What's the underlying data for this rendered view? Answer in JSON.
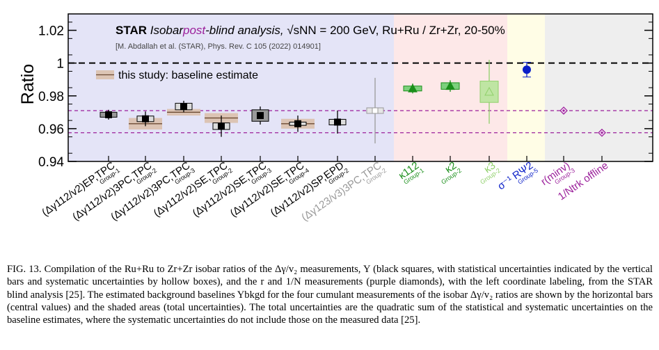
{
  "chart_data": {
    "type": "scatter",
    "ylabel": "Ratio",
    "ylim": [
      0.94,
      1.03
    ],
    "yticks": [
      "0.94",
      "0.96",
      "0.98",
      "1",
      "1.02"
    ],
    "title": {
      "experiment": "STAR",
      "text_a": "Isobar",
      "text_b": "post",
      "text_c": "-blind analysis,",
      "energy": "√sNN = 200 GeV,",
      "system": "Ru+Ru / Zr+Zr,",
      "centrality": "20-50%"
    },
    "reference": "[M. Abdallah et al. (STAR), Phys. Rev. C 105 (2022) 014901]",
    "legend": "this study: baseline estimate",
    "reference_lines": {
      "unity": 1.0,
      "purple_dashed": [
        0.971,
        0.9575
      ]
    },
    "colors": {
      "band_dy": "#e4e4f7",
      "band_k": "#fde8e8",
      "band_sigma": "#fffde6",
      "band_rn": "#eeeeee",
      "black": "#000000",
      "gray": "#999999",
      "green": "#1a8f1a",
      "lightgreen": "#8fd06a",
      "blue": "#0a1fc8",
      "purple": "#9b1f9b",
      "baseline": "#dcc4b4"
    },
    "categories": [
      {
        "label": "(Δγ112/v2)EP,TPC",
        "sub": "Group-1",
        "color": "black"
      },
      {
        "label": "(Δγ112/v2)3PC,TPC",
        "sub": "Group-2",
        "color": "black"
      },
      {
        "label": "(Δγ112/v2)3PC,TPC",
        "sub": "Group-3",
        "color": "black"
      },
      {
        "label": "(Δγ112/v2)SE,TPC",
        "sub": "Group-2",
        "color": "black"
      },
      {
        "label": "(Δγ112/v2)SE,TPC",
        "sub": "Group-3",
        "color": "black"
      },
      {
        "label": "(Δγ112/v2)SE,TPC",
        "sub": "Group-4",
        "color": "black"
      },
      {
        "label": "(Δγ112/v2)SP,EPD",
        "sub": "Group-2",
        "color": "black"
      },
      {
        "label": "(Δγ123/v3)3PC,TPC",
        "sub": "Group-2",
        "color": "gray"
      },
      {
        "label": "κ112",
        "sub": "Group-1",
        "color": "green"
      },
      {
        "label": "κ2",
        "sub": "Group-2",
        "color": "green"
      },
      {
        "label": "κ3",
        "sub": "Group-2",
        "color": "lightgreen"
      },
      {
        "label": "σ⁻¹ RΨ2",
        "sub": "Group-5",
        "color": "blue"
      },
      {
        "label": "r(minv)",
        "sub": "Group-3",
        "color": "purple"
      },
      {
        "label": "1/Ntrk offline",
        "sub": "",
        "color": "purple"
      }
    ],
    "series": [
      {
        "name": "Y",
        "marker": "square",
        "values": [
          0.9685,
          0.966,
          0.9735,
          0.9615,
          0.968,
          0.963,
          0.964,
          0.971
        ],
        "stat_err": [
          0.003,
          0.0045,
          0.0035,
          0.0065,
          0.0055,
          0.005,
          0.007,
          0.02
        ],
        "sys_err": [
          0.0015,
          0.0017,
          0.002,
          0.002,
          0.0035,
          0.001,
          0.0017,
          0.0017
        ]
      },
      {
        "name": "kappa",
        "marker": "triangle",
        "values": [
          0.9845,
          0.986,
          0.9825
        ],
        "stat_err": [
          0.003,
          0.0035,
          0.0195
        ],
        "sys_err": [
          0.0015,
          0.002,
          0.0065
        ]
      },
      {
        "name": "sigma",
        "marker": "circle",
        "values": [
          0.996
        ],
        "stat_err": [
          0.0045
        ],
        "sys_err": [
          0
        ]
      },
      {
        "name": "r and 1/N",
        "marker": "diamond",
        "values": [
          0.971,
          0.9575
        ],
        "stat_err": [
          0,
          0
        ],
        "sys_err": [
          0,
          0
        ]
      }
    ],
    "baselines": [
      {
        "category": 1,
        "center": 0.963,
        "half_width": 0.0035
      },
      {
        "category": 2,
        "center": 0.97,
        "half_width": 0.002
      },
      {
        "category": 3,
        "center": 0.9665,
        "half_width": 0.003
      },
      {
        "category": 5,
        "center": 0.963,
        "half_width": 0.003
      }
    ]
  },
  "caption": {
    "l1": "FIG. 13.  Compilation of the Ru+Ru to Zr+Zr isobar ratios of the Δγ/v₂ measurements, Y (black squares, with statistical",
    "l2": "uncertainties indicated by the vertical bars and systematic uncertainties by hollow boxes), and the r and 1/N measurements",
    "l3": "(purple diamonds), with the left coordinate labeling, from the STAR blind analysis [25]. The estimated background baselines",
    "l4": "Ybkgd for the four cumulant measurements of the isobar Δγ/v₂ ratios are shown by the horizontal bars (central values) and the",
    "l5": "shaded areas (total uncertainties). The total uncertainties are the quadratic sum of the statistical and systematic uncertainties",
    "l6": "on the baseline estimates, where the systematic uncertainties do not include those on the measured data [25]."
  }
}
